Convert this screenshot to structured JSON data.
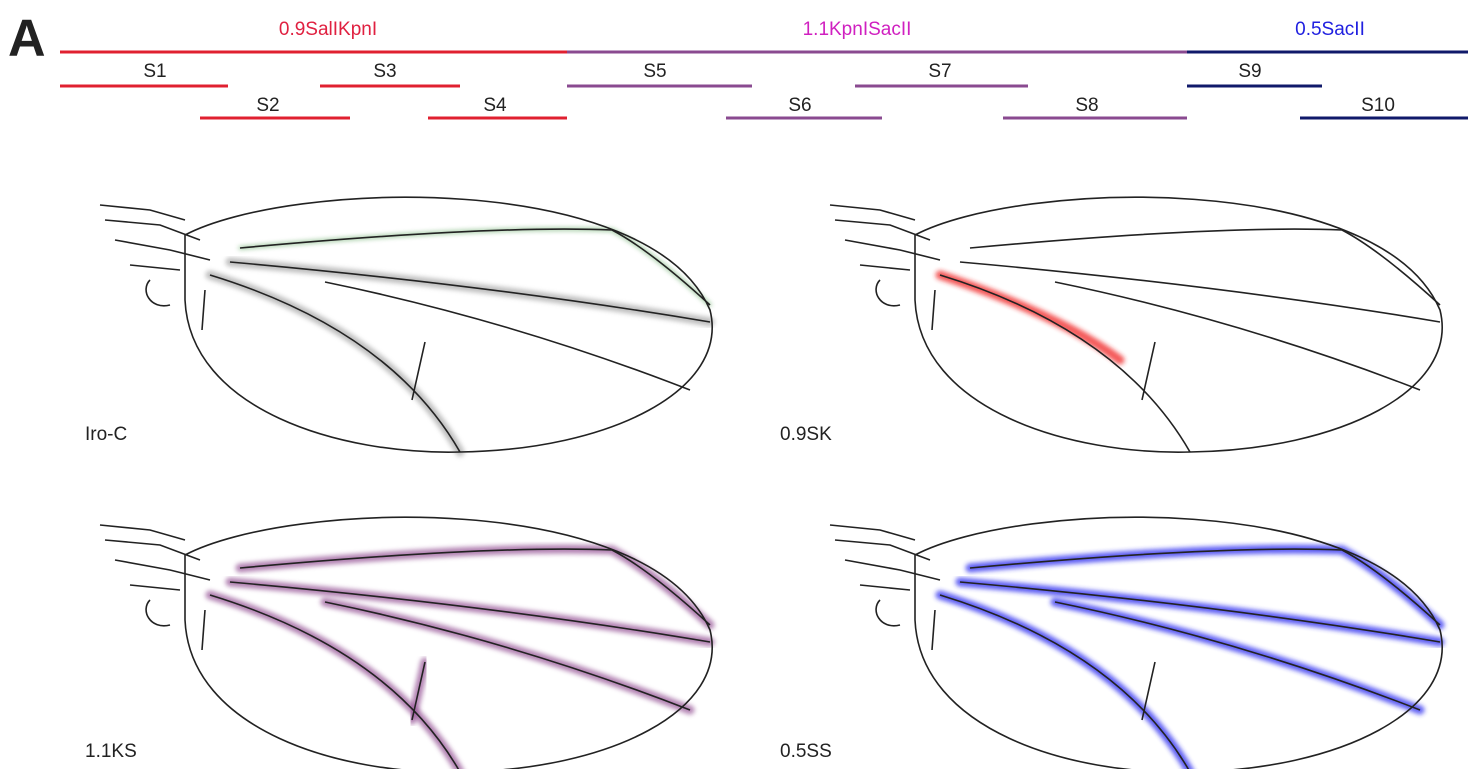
{
  "panel": "A",
  "fragments": [
    "0.9SalIKpnI",
    "1.1KpnISacII",
    "0.5SacII"
  ],
  "segments": [
    "S1",
    "S2",
    "S3",
    "S4",
    "S5",
    "S6",
    "S7",
    "S8",
    "S9",
    "S10"
  ],
  "wings": [
    "Iro-C",
    "0.9SK",
    "1.1KS",
    "0.5SS"
  ]
}
